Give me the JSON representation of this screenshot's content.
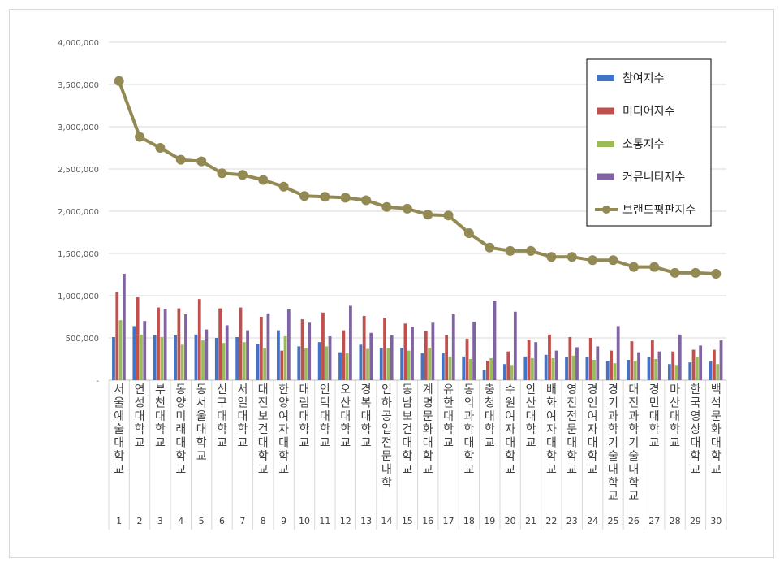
{
  "chart_data": {
    "type": "bar",
    "title": "",
    "xlabel": "",
    "ylabel": "",
    "ylim": [
      0,
      4000000
    ],
    "yticks": [
      0,
      500000,
      1000000,
      1500000,
      2000000,
      2500000,
      3000000,
      3500000,
      4000000
    ],
    "ytick_labels": [
      "-",
      "500,000",
      "1,000,000",
      "1,500,000",
      "2,000,000",
      "2,500,000",
      "3,000,000",
      "3,500,000",
      "4,000,000"
    ],
    "ranks": [
      "1",
      "2",
      "3",
      "4",
      "5",
      "6",
      "7",
      "8",
      "9",
      "10",
      "11",
      "12",
      "13",
      "14",
      "15",
      "16",
      "17",
      "18",
      "19",
      "20",
      "21",
      "22",
      "23",
      "24",
      "25",
      "26",
      "27",
      "28",
      "29",
      "30"
    ],
    "categories": [
      "서울예술대학교",
      "연성대학교",
      "부천대학교",
      "동양미래대학교",
      "동서울대학교",
      "신구대학교",
      "서일대학교",
      "대전보건대학교",
      "한양여자대학교",
      "대림대학교",
      "인덕대학교",
      "오산대학교",
      "경복대학교",
      "인하공업전문대학",
      "동남보건대학교",
      "계명문화대학교",
      "유한대학교",
      "동의과학대학교",
      "충청대학교",
      "수원여자대학교",
      "안산대학교",
      "배화여자대학교",
      "영진전문대학교",
      "경인여자대학교",
      "경기과학기술대학교",
      "대전과학기술대학교",
      "경민대학교",
      "마산대학교",
      "한국영상대학교",
      "백석문화대학교"
    ],
    "series": [
      {
        "name": "참여지수",
        "kind": "bar",
        "color": "#4472c4",
        "values": [
          510000,
          640000,
          530000,
          530000,
          540000,
          500000,
          510000,
          430000,
          590000,
          400000,
          450000,
          330000,
          420000,
          380000,
          380000,
          320000,
          320000,
          280000,
          120000,
          190000,
          280000,
          300000,
          270000,
          270000,
          230000,
          240000,
          270000,
          190000,
          210000,
          220000
        ]
      },
      {
        "name": "미디어지수",
        "kind": "bar",
        "color": "#c0504d",
        "values": [
          1040000,
          980000,
          860000,
          850000,
          960000,
          850000,
          860000,
          750000,
          350000,
          720000,
          800000,
          590000,
          760000,
          740000,
          670000,
          580000,
          530000,
          490000,
          230000,
          340000,
          480000,
          540000,
          510000,
          500000,
          350000,
          460000,
          470000,
          340000,
          360000,
          360000
        ]
      },
      {
        "name": "소통지수",
        "kind": "bar",
        "color": "#9bbb59",
        "values": [
          710000,
          540000,
          510000,
          420000,
          470000,
          440000,
          450000,
          380000,
          520000,
          380000,
          400000,
          320000,
          370000,
          380000,
          350000,
          380000,
          280000,
          250000,
          260000,
          180000,
          260000,
          260000,
          290000,
          240000,
          200000,
          230000,
          250000,
          180000,
          270000,
          190000
        ]
      },
      {
        "name": "커뮤니티지수",
        "kind": "bar",
        "color": "#8064a2",
        "values": [
          1260000,
          700000,
          840000,
          780000,
          600000,
          650000,
          590000,
          790000,
          840000,
          680000,
          520000,
          880000,
          560000,
          530000,
          630000,
          680000,
          780000,
          690000,
          940000,
          810000,
          450000,
          350000,
          390000,
          400000,
          640000,
          330000,
          340000,
          540000,
          410000,
          470000
        ]
      },
      {
        "name": "브랜드평판지수",
        "kind": "line",
        "color": "#938953",
        "values": [
          3540000,
          2880000,
          2750000,
          2610000,
          2590000,
          2450000,
          2430000,
          2370000,
          2290000,
          2180000,
          2170000,
          2160000,
          2130000,
          2050000,
          2030000,
          1960000,
          1950000,
          1740000,
          1570000,
          1530000,
          1530000,
          1460000,
          1460000,
          1420000,
          1420000,
          1340000,
          1340000,
          1270000,
          1270000,
          1260000
        ]
      }
    ],
    "legend_position": "right",
    "grid": true
  }
}
